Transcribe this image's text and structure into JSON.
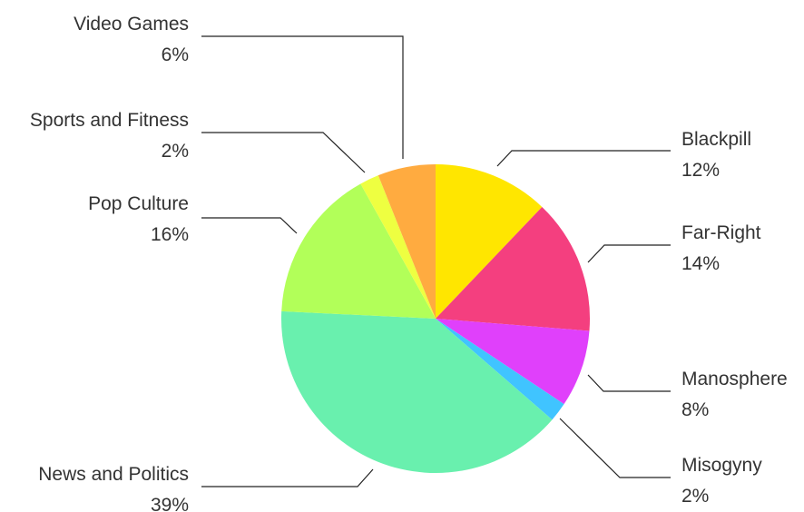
{
  "chart_data": {
    "type": "pie",
    "title": "",
    "slices": [
      {
        "label": "Blackpill",
        "value": 12,
        "display": "12%",
        "color": "#FFE600"
      },
      {
        "label": "Far-Right",
        "value": 14,
        "display": "14%",
        "color": "#F43F7F"
      },
      {
        "label": "Manosphere",
        "value": 8,
        "display": "8%",
        "color": "#E040FB"
      },
      {
        "label": "Misogyny",
        "value": 2,
        "display": "2%",
        "color": "#40C4FF"
      },
      {
        "label": "News and Politics",
        "value": 39,
        "display": "39%",
        "color": "#69F0AE"
      },
      {
        "label": "Pop Culture",
        "value": 16,
        "display": "16%",
        "color": "#B2FF59"
      },
      {
        "label": "Sports and Fitness",
        "value": 2,
        "display": "2%",
        "color": "#EEFF41"
      },
      {
        "label": "Video Games",
        "value": 6,
        "display": "6%",
        "color": "#FFAB40"
      }
    ],
    "start_angle": "12 o'clock",
    "direction": "clockwise",
    "legend": "none (labels with leader lines)"
  }
}
